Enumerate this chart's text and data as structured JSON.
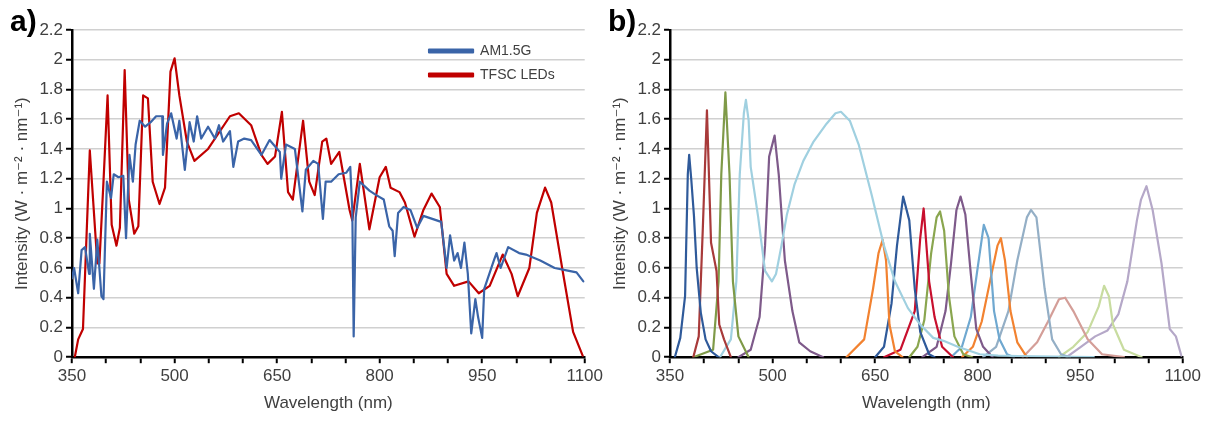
{
  "chart_data": [
    {
      "type": "line",
      "title": "a)",
      "xlabel": "Wavelength (nm)",
      "ylabel": "Intensity (W · m⁻² · nm⁻¹)",
      "xlim": [
        350,
        1100
      ],
      "ylim": [
        0,
        2.2
      ],
      "xticks": [
        350,
        {
          "value": 400,
          "label": null
        },
        {
          "value": 450,
          "label": null
        },
        500,
        {
          "value": 550,
          "label": null
        },
        {
          "value": 600,
          "label": null
        },
        650,
        {
          "value": 700,
          "label": null
        },
        {
          "value": 750,
          "label": null
        },
        800,
        {
          "value": 850,
          "label": null
        },
        {
          "value": 900,
          "label": null
        },
        950,
        {
          "value": 1000,
          "label": null
        },
        {
          "value": 1050,
          "label": null
        },
        1100
      ],
      "yticks": [
        0,
        0.2,
        0.4,
        0.6,
        0.8,
        1,
        1.2,
        1.4,
        1.6,
        1.8,
        2,
        2.2
      ],
      "grid": "y",
      "legend": "top right",
      "series": [
        {
          "name": "AM1.5G",
          "color": "#3a64a8",
          "x": [
            350,
            353,
            359,
            364,
            369,
            375,
            376,
            382,
            387,
            393,
            396,
            401,
            407,
            411,
            418,
            425,
            429,
            434,
            439,
            443,
            449,
            457,
            465,
            473,
            482,
            483,
            489,
            495,
            503,
            507,
            515,
            522,
            528,
            533,
            539,
            549,
            559,
            565,
            571,
            581,
            586,
            593,
            602,
            612,
            627,
            639,
            654,
            656,
            663,
            676,
            687,
            692,
            703,
            710,
            717,
            721,
            729,
            740,
            751,
            757,
            760,
            762,
            765,
            771,
            785,
            795,
            806,
            814,
            819,
            822,
            827,
            835,
            845,
            855,
            864,
            877,
            890,
            898,
            903,
            909,
            914,
            919,
            924,
            929,
            934,
            940,
            944,
            950,
            953,
            967,
            971,
            977,
            988,
            1004,
            1014,
            1035,
            1056,
            1077,
            1088,
            1098
          ],
          "values": [
            0.53,
            0.6,
            0.43,
            0.72,
            0.74,
            0.56,
            0.83,
            0.46,
            0.79,
            0.41,
            0.39,
            1.18,
            1.07,
            1.23,
            1.21,
            1.22,
            0.8,
            1.36,
            1.18,
            1.43,
            1.59,
            1.55,
            1.58,
            1.62,
            1.62,
            1.36,
            1.57,
            1.64,
            1.47,
            1.59,
            1.26,
            1.58,
            1.45,
            1.62,
            1.47,
            1.55,
            1.47,
            1.56,
            1.45,
            1.52,
            1.28,
            1.45,
            1.47,
            1.46,
            1.36,
            1.46,
            1.38,
            1.2,
            1.43,
            1.4,
            0.98,
            1.26,
            1.32,
            1.3,
            0.93,
            1.18,
            1.18,
            1.23,
            1.24,
            1.28,
            0.99,
            0.14,
            0.94,
            1.18,
            1.12,
            1.09,
            1.06,
            0.88,
            0.85,
            0.68,
            0.97,
            1.01,
            0.99,
            0.87,
            0.95,
            0.93,
            0.91,
            0.6,
            0.82,
            0.65,
            0.7,
            0.6,
            0.77,
            0.56,
            0.16,
            0.39,
            0.27,
            0.13,
            0.46,
            0.65,
            0.7,
            0.6,
            0.74,
            0.7,
            0.69,
            0.65,
            0.6,
            0.58,
            0.57,
            0.51
          ]
        },
        {
          "name": "TFSC LEDs",
          "color": "#c00000",
          "x": [
            354,
            359,
            366,
            376,
            387,
            390,
            396,
            402,
            408,
            415,
            420,
            427,
            433,
            441,
            447,
            454,
            461,
            468,
            478,
            486,
            494,
            500,
            507,
            518,
            529,
            549,
            581,
            594,
            612,
            627,
            636,
            647,
            657,
            666,
            673,
            688,
            697,
            705,
            716,
            722,
            729,
            741,
            756,
            760,
            771,
            785,
            800,
            809,
            816,
            829,
            837,
            851,
            864,
            876,
            888,
            898,
            909,
            930,
            945,
            961,
            980,
            993,
            1002,
            1019,
            1030,
            1042,
            1051,
            1067,
            1083,
            1097
          ],
          "values": [
            0,
            0.12,
            0.19,
            1.39,
            0.63,
            0.63,
            1.18,
            1.76,
            0.89,
            0.75,
            0.87,
            1.93,
            1.06,
            0.83,
            0.88,
            1.76,
            1.74,
            1.18,
            1.03,
            1.14,
            1.92,
            2.01,
            1.76,
            1.45,
            1.32,
            1.4,
            1.62,
            1.64,
            1.56,
            1.36,
            1.3,
            1.35,
            1.65,
            1.11,
            1.06,
            1.59,
            1.18,
            1.09,
            1.45,
            1.47,
            1.3,
            1.38,
            0.99,
            0.92,
            1.3,
            0.86,
            1.21,
            1.28,
            1.14,
            1.11,
            1.04,
            0.81,
            0.99,
            1.1,
            1.01,
            0.56,
            0.48,
            0.51,
            0.43,
            0.48,
            0.69,
            0.56,
            0.41,
            0.6,
            0.97,
            1.14,
            1.04,
            0.6,
            0.17,
            0.01
          ]
        }
      ]
    },
    {
      "type": "line",
      "title": "b)",
      "xlabel": "Wavelength (nm)",
      "ylabel": "Intensity (W · m⁻² · nm⁻¹)",
      "xlim": [
        350,
        1100
      ],
      "ylim": [
        0,
        2.2
      ],
      "xticks": [
        350,
        {
          "value": 400,
          "label": null
        },
        {
          "value": 450,
          "label": null
        },
        500,
        {
          "value": 550,
          "label": null
        },
        {
          "value": 600,
          "label": null
        },
        650,
        {
          "value": 700,
          "label": null
        },
        {
          "value": 750,
          "label": null
        },
        800,
        {
          "value": 850,
          "label": null
        },
        {
          "value": 900,
          "label": null
        },
        950,
        {
          "value": 1000,
          "label": null
        },
        {
          "value": 1050,
          "label": null
        },
        1100
      ],
      "yticks": [
        0,
        0.2,
        0.4,
        0.6,
        0.8,
        1,
        1.2,
        1.4,
        1.6,
        1.8,
        2,
        2.2
      ],
      "grid": "y",
      "series": [
        {
          "color": "#2f5a9a",
          "x": [
            357,
            365,
            372,
            376,
            378,
            381,
            385,
            389,
            395,
            402,
            410,
            421
          ],
          "values": [
            0,
            0.13,
            0.41,
            1.23,
            1.36,
            1.2,
            0.95,
            0.6,
            0.3,
            0.12,
            0.04,
            0
          ]
        },
        {
          "color": "#a83a3a",
          "x": [
            384,
            392,
            398,
            404,
            410,
            418,
            422,
            429,
            439
          ],
          "values": [
            0,
            0.14,
            0.87,
            1.66,
            0.77,
            0.58,
            0.22,
            0.12,
            0
          ]
        },
        {
          "color": "#7f9a48",
          "x": [
            384,
            413,
            421,
            425,
            431,
            437,
            442,
            450,
            465
          ],
          "values": [
            0,
            0.05,
            0.51,
            1.23,
            1.78,
            1.23,
            0.51,
            0.14,
            0
          ]
        },
        {
          "color": "#a0d0e0",
          "x": [
            423,
            439,
            447,
            452,
            458,
            461,
            465,
            468,
            479,
            489,
            499,
            505,
            508,
            513,
            521,
            532,
            545,
            560,
            579,
            592,
            600,
            613,
            626,
            645,
            663,
            679,
            698,
            716,
            735,
            750,
            771,
            803,
            830,
            970
          ],
          "values": [
            0,
            0.12,
            0.51,
            1.23,
            1.64,
            1.73,
            1.59,
            1.28,
            0.94,
            0.58,
            0.51,
            0.56,
            0.63,
            0.75,
            0.96,
            1.16,
            1.32,
            1.45,
            1.57,
            1.64,
            1.65,
            1.59,
            1.43,
            1.09,
            0.75,
            0.51,
            0.33,
            0.22,
            0.13,
            0.11,
            0.07,
            0.02,
            0.01,
            0
          ]
        },
        {
          "color": "#7e5a8a",
          "x": [
            450,
            468,
            481,
            489,
            495,
            503,
            509,
            518,
            529,
            539,
            555,
            574
          ],
          "values": [
            0,
            0.05,
            0.27,
            0.75,
            1.35,
            1.49,
            1.23,
            0.65,
            0.31,
            0.1,
            0.04,
            0
          ]
        },
        {
          "color": "#f28230",
          "x": [
            608,
            634,
            647,
            655,
            661,
            666,
            671,
            679,
            690
          ],
          "values": [
            0,
            0.12,
            0.46,
            0.7,
            0.79,
            0.65,
            0.22,
            0.04,
            0
          ]
        },
        {
          "color": "#2f5a9a",
          "x": [
            650,
            663,
            674,
            682,
            691,
            700,
            708,
            716,
            729,
            737
          ],
          "values": [
            0,
            0.07,
            0.36,
            0.75,
            1.08,
            0.92,
            0.46,
            0.17,
            0.02,
            0
          ]
        },
        {
          "color": "#c8102e",
          "x": [
            663,
            687,
            708,
            716,
            721,
            729,
            737,
            748,
            764
          ],
          "values": [
            0,
            0.05,
            0.31,
            0.8,
            1,
            0.51,
            0.27,
            0.07,
            0
          ]
        },
        {
          "color": "#8aa64f",
          "x": [
            700,
            712,
            722,
            732,
            740,
            745,
            751,
            758,
            766,
            779,
            792
          ],
          "values": [
            0,
            0.07,
            0.25,
            0.7,
            0.94,
            0.98,
            0.85,
            0.41,
            0.14,
            0.02,
            0
          ]
        },
        {
          "color": "#7e5a8a",
          "x": [
            719,
            740,
            753,
            761,
            769,
            775,
            782,
            790,
            798,
            808,
            822
          ],
          "values": [
            0,
            0.07,
            0.31,
            0.63,
            0.99,
            1.08,
            0.96,
            0.56,
            0.19,
            0.07,
            0
          ]
        },
        {
          "color": "#6fa8d0",
          "x": [
            761,
            777,
            790,
            800,
            809,
            816,
            824,
            832,
            843,
            853
          ],
          "values": [
            0,
            0.07,
            0.27,
            0.6,
            0.89,
            0.8,
            0.31,
            0.12,
            0.02,
            0
          ]
        },
        {
          "color": "#f28230",
          "x": [
            777,
            793,
            806,
            819,
            829,
            834,
            840,
            848,
            858,
            872
          ],
          "values": [
            0,
            0.07,
            0.24,
            0.53,
            0.75,
            0.8,
            0.65,
            0.31,
            0.1,
            0
          ]
        },
        {
          "color": "#94afc6",
          "x": [
            808,
            827,
            845,
            858,
            872,
            878,
            886,
            898,
            909,
            922,
            935
          ],
          "values": [
            0,
            0.07,
            0.31,
            0.65,
            0.94,
            0.99,
            0.94,
            0.46,
            0.12,
            0.02,
            0
          ]
        },
        {
          "color": "#d49e98",
          "x": [
            866,
            887,
            903,
            919,
            928,
            940,
            961,
            982,
            1014
          ],
          "values": [
            0,
            0.1,
            0.24,
            0.39,
            0.4,
            0.31,
            0.12,
            0.02,
            0
          ]
        },
        {
          "color": "#c8dca0",
          "x": [
            919,
            940,
            961,
            977,
            985,
            992,
            998,
            1014,
            1040
          ],
          "values": [
            0,
            0.07,
            0.17,
            0.34,
            0.48,
            0.41,
            0.22,
            0.05,
            0
          ]
        },
        {
          "color": "#b5a8c8",
          "x": [
            930,
            951,
            972,
            990,
            1006,
            1019,
            1033,
            1039,
            1047,
            1056,
            1069,
            1081,
            1090,
            1098
          ],
          "values": [
            0,
            0.07,
            0.14,
            0.18,
            0.29,
            0.51,
            0.92,
            1.06,
            1.15,
            0.99,
            0.63,
            0.19,
            0.14,
            0.01
          ]
        }
      ]
    }
  ]
}
